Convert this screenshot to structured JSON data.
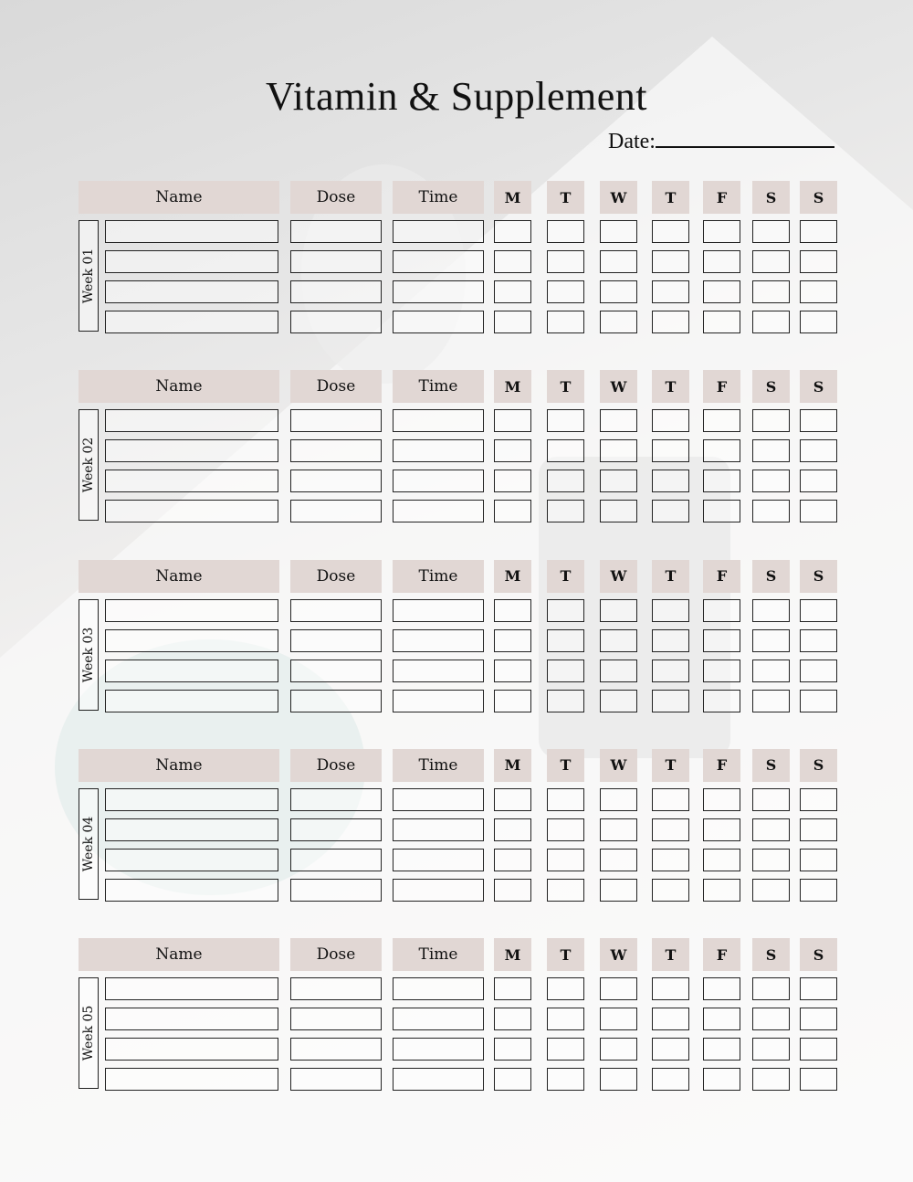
{
  "title": "Vitamin &  Supplement",
  "date_label": "Date:",
  "colors": {
    "header_fill": "#e1d7d4",
    "border": "#222222"
  },
  "columns": [
    "Name",
    "Dose",
    "Time",
    "M",
    "T",
    "W",
    "T",
    "F",
    "S",
    "S"
  ],
  "weeks": [
    {
      "label": "Week 01"
    },
    {
      "label": "Week 02"
    },
    {
      "label": "Week 03"
    },
    {
      "label": "Week 04"
    },
    {
      "label": "Week 05"
    }
  ]
}
